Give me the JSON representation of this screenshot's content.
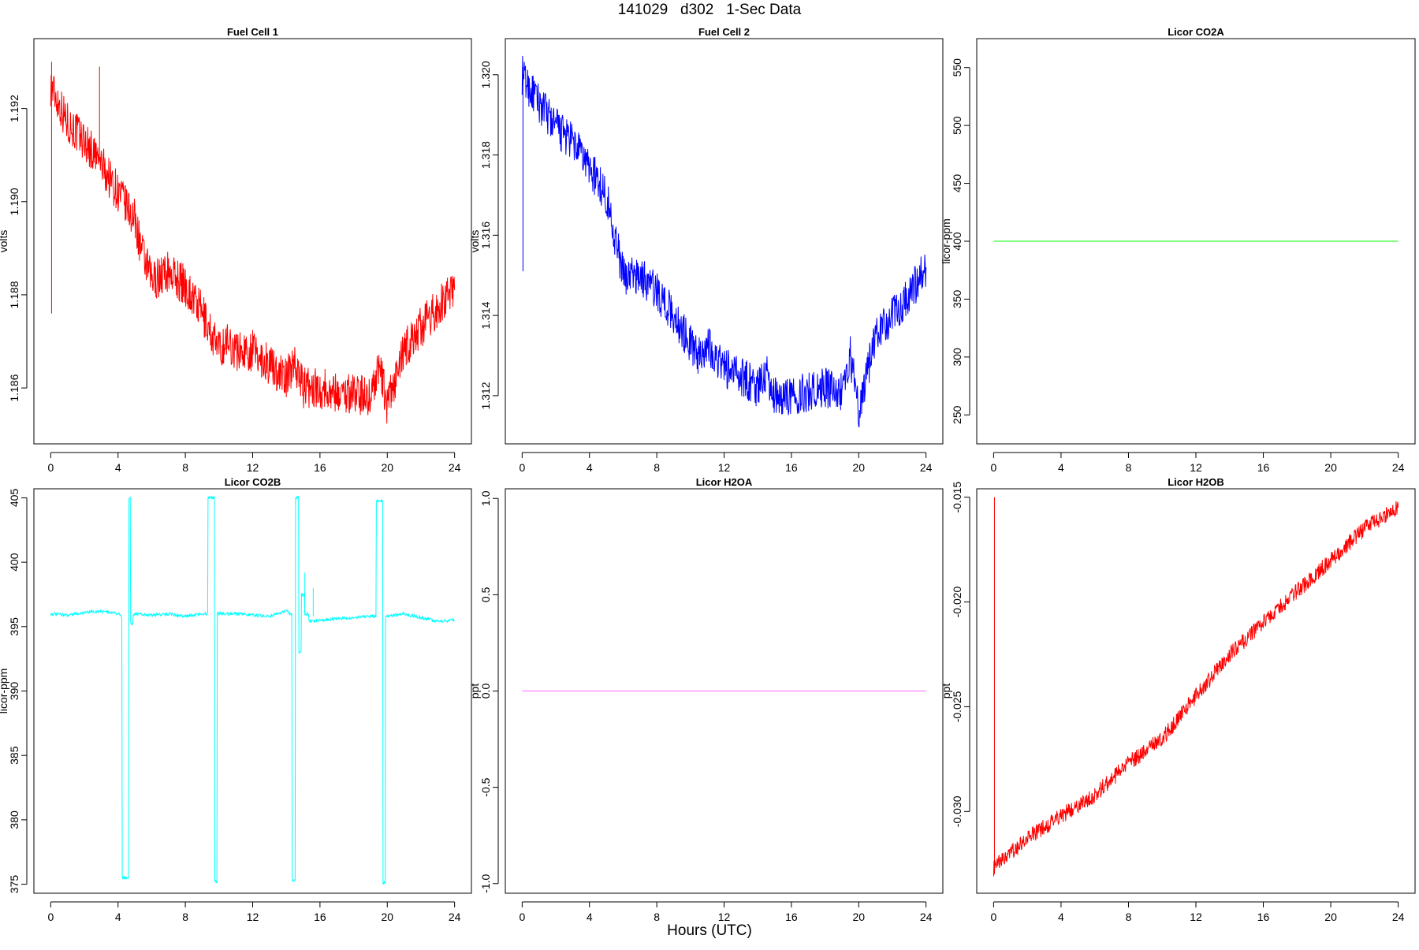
{
  "figure": {
    "title": "141029   d302   1-Sec Data",
    "xlabel": "Hours (UTC)"
  },
  "chart_data": [
    {
      "type": "line",
      "title": "Fuel Cell 1",
      "ylabel": "volts",
      "color": "#ff0000",
      "xlim": [
        -1,
        25
      ],
      "ylim": [
        1.1848,
        1.1935
      ],
      "xticks": [
        0,
        4,
        8,
        12,
        16,
        20,
        24
      ],
      "yticks": [
        1.186,
        1.188,
        1.19,
        1.192
      ],
      "ytick_labels": [
        "1.186",
        "1.188",
        "1.190",
        "1.192"
      ],
      "noise": 0.00045,
      "series": [
        {
          "x": [
            0,
            0.5,
            1,
            2,
            3,
            4,
            5,
            5.5,
            6,
            7,
            8,
            9,
            10,
            10.5,
            11,
            12,
            13,
            14,
            14.5,
            15,
            16,
            17,
            18,
            19,
            19.5,
            20,
            21,
            22,
            23,
            24
          ],
          "y": [
            1.1925,
            1.1921,
            1.1917,
            1.1913,
            1.1908,
            1.1902,
            1.1896,
            1.1888,
            1.1883,
            1.1885,
            1.1882,
            1.1876,
            1.1868,
            1.187,
            1.1868,
            1.1868,
            1.1865,
            1.1862,
            1.1866,
            1.186,
            1.186,
            1.1859,
            1.1859,
            1.1858,
            1.1865,
            1.1856,
            1.1868,
            1.1873,
            1.1877,
            1.1881
          ]
        }
      ],
      "spikes": [
        {
          "x": 0.05,
          "y0": 1.1876,
          "y1": 1.193
        },
        {
          "x": 2.9,
          "y0": 1.191,
          "y1": 1.1929
        }
      ]
    },
    {
      "type": "line",
      "title": "Fuel Cell 2",
      "ylabel": "volts",
      "color": "#0000ff",
      "xlim": [
        -1,
        25
      ],
      "ylim": [
        1.3108,
        1.3209
      ],
      "xticks": [
        0,
        4,
        8,
        12,
        16,
        20,
        24
      ],
      "yticks": [
        1.312,
        1.314,
        1.316,
        1.318,
        1.32
      ],
      "ytick_labels": [
        "1.312",
        "1.314",
        "1.316",
        "1.318",
        "1.320"
      ],
      "noise": 0.0005,
      "series": [
        {
          "x": [
            0,
            0.5,
            1,
            2,
            3,
            4,
            5,
            5.5,
            6,
            7,
            8,
            9,
            10,
            10.5,
            11,
            12,
            13,
            14,
            14.5,
            15,
            16,
            17,
            18,
            19,
            19.5,
            20,
            21,
            22,
            23,
            24
          ],
          "y": [
            1.32,
            1.3196,
            1.3193,
            1.3187,
            1.3183,
            1.3177,
            1.317,
            1.316,
            1.315,
            1.315,
            1.3146,
            1.314,
            1.3133,
            1.313,
            1.3133,
            1.3127,
            1.3125,
            1.3122,
            1.3126,
            1.312,
            1.312,
            1.3121,
            1.3122,
            1.3121,
            1.313,
            1.3116,
            1.3135,
            1.314,
            1.3145,
            1.3152
          ]
        }
      ],
      "spikes": [
        {
          "x": 0.05,
          "y0": 1.3151,
          "y1": 1.3202
        }
      ]
    },
    {
      "type": "line",
      "title": "Licor CO2A",
      "ylabel": "licor-ppm",
      "color": "#00ff00",
      "xlim": [
        -1,
        25
      ],
      "ylim": [
        225,
        575
      ],
      "xticks": [
        0,
        4,
        8,
        12,
        16,
        20,
        24
      ],
      "yticks": [
        250,
        300,
        350,
        400,
        450,
        500,
        550
      ],
      "ytick_labels": [
        "250",
        "300",
        "350",
        "400",
        "450",
        "500",
        "550"
      ],
      "noise": 0,
      "series": [
        {
          "x": [
            0,
            24
          ],
          "y": [
            400,
            400
          ]
        }
      ],
      "spikes": []
    },
    {
      "type": "line",
      "title": "Licor CO2B",
      "ylabel": "licor-ppm",
      "color": "#00ffff",
      "xlim": [
        -1,
        25
      ],
      "ylim": [
        374.3,
        405.7
      ],
      "xticks": [
        0,
        4,
        8,
        12,
        16,
        20,
        24
      ],
      "yticks": [
        375,
        380,
        385,
        390,
        395,
        400,
        405
      ],
      "ytick_labels": [
        "375",
        "380",
        "385",
        "390",
        "395",
        "400",
        "405"
      ],
      "noise": 0.12,
      "series": [
        {
          "x": [
            0,
            1,
            2,
            3,
            4,
            4.2,
            4.3,
            4.6,
            4.7,
            4.8,
            5,
            6,
            7,
            8,
            9,
            9.3,
            9.4,
            9.7,
            9.8,
            10,
            11,
            12,
            13,
            14,
            14.3,
            14.4,
            14.7,
            14.8,
            15,
            15.2,
            15.5,
            16,
            17,
            18,
            19,
            19.3,
            19.4,
            19.7,
            19.8,
            20,
            21,
            22,
            23,
            24
          ],
          "y": [
            396.0,
            395.9,
            396.1,
            396.2,
            396.0,
            395.8,
            375.5,
            375.5,
            405.0,
            395.2,
            396.0,
            395.9,
            396.0,
            395.8,
            396.0,
            396.0,
            405.0,
            405.0,
            375.2,
            396.0,
            396.0,
            395.9,
            395.8,
            396.2,
            396.0,
            375.3,
            405.0,
            393.0,
            397.5,
            396.0,
            395.4,
            395.5,
            395.6,
            395.7,
            395.8,
            395.8,
            404.8,
            404.8,
            375.1,
            395.8,
            396.0,
            395.7,
            395.4,
            395.5
          ]
        }
      ],
      "spikes": [
        {
          "x": 15.1,
          "y0": 396.0,
          "y1": 399.2
        },
        {
          "x": 15.6,
          "y0": 395.8,
          "y1": 398.0
        }
      ]
    },
    {
      "type": "line",
      "title": "Licor H2OA",
      "ylabel": "ppt",
      "color": "#ff66ff",
      "xlim": [
        -1,
        25
      ],
      "ylim": [
        -1.05,
        1.05
      ],
      "xticks": [
        0,
        4,
        8,
        12,
        16,
        20,
        24
      ],
      "yticks": [
        -1,
        -0.5,
        0,
        0.5,
        1
      ],
      "ytick_labels": [
        "-1.0",
        "-0.5",
        "0.0",
        "0.5",
        "1.0"
      ],
      "noise": 0,
      "series": [
        {
          "x": [
            0,
            24
          ],
          "y": [
            0,
            0
          ]
        }
      ],
      "spikes": []
    },
    {
      "type": "line",
      "title": "Licor H2OB",
      "ylabel": "ppt",
      "color": "#ff0000",
      "xlim": [
        -1,
        25
      ],
      "ylim": [
        -0.0339,
        -0.0146
      ],
      "xticks": [
        0,
        4,
        8,
        12,
        16,
        20,
        24
      ],
      "yticks": [
        -0.03,
        -0.025,
        -0.02,
        -0.015
      ],
      "ytick_labels": [
        "-0.030",
        "-0.025",
        "-0.020",
        "-0.015"
      ],
      "noise": 0.0004,
      "series": [
        {
          "x": [
            0,
            2,
            4,
            6,
            8,
            10,
            12,
            14,
            16,
            18,
            20,
            22,
            24
          ],
          "y": [
            -0.0327,
            -0.0313,
            -0.0302,
            -0.0292,
            -0.0277,
            -0.0265,
            -0.0245,
            -0.0225,
            -0.021,
            -0.0195,
            -0.018,
            -0.0165,
            -0.0155
          ]
        }
      ],
      "spikes": [
        {
          "x": 0.05,
          "y0": -0.033,
          "y1": -0.015
        }
      ]
    }
  ]
}
